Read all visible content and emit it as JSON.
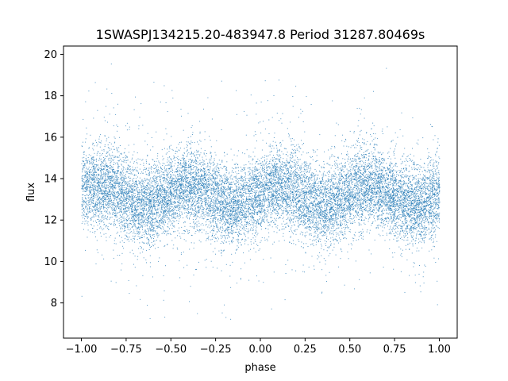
{
  "chart_data": {
    "type": "scatter",
    "title": "1SWASPJ134215.20-483947.8 Period 31287.80469s",
    "xlabel": "phase",
    "ylabel": "flux",
    "xlim": [
      -1.1,
      1.1
    ],
    "ylim": [
      6.3,
      20.4
    ],
    "xticks": [
      -1.0,
      -0.75,
      -0.5,
      -0.25,
      0.0,
      0.25,
      0.5,
      0.75,
      1.0
    ],
    "xtick_labels": [
      "−1.00",
      "−0.75",
      "−0.50",
      "−0.25",
      "0.00",
      "0.25",
      "0.50",
      "0.75",
      "1.00"
    ],
    "yticks": [
      8,
      10,
      12,
      14,
      16,
      18,
      20
    ],
    "ytick_labels": [
      "8",
      "10",
      "12",
      "14",
      "16",
      "18",
      "20"
    ],
    "grid": false,
    "point_color": "#1f77b4",
    "series": [
      {
        "x_range": [
          -1.0,
          1.0
        ],
        "baseline_flux": 13.2,
        "modulation_amplitude": 0.5,
        "modulation_cycles_per_unit_phase": 2,
        "scatter_sigma": 0.95,
        "flux_range": [
          7.0,
          19.6
        ]
      }
    ]
  }
}
